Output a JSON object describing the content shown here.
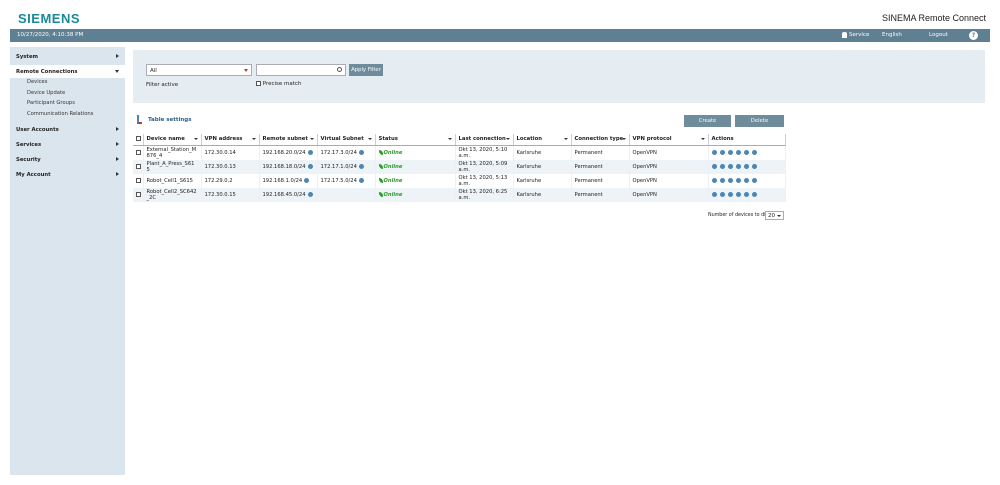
{
  "header": {
    "logo": "SIEMENS",
    "product": "SINEMA Remote Connect"
  },
  "topbar": {
    "datetime": "10/27/2020, 4:10:38 PM",
    "service": "Service",
    "language": "English",
    "logout": "Logout",
    "help": "?"
  },
  "sidebar": {
    "menu": [
      {
        "label": "System"
      },
      {
        "label": "Remote Connections",
        "children": [
          "Devices",
          "Device Update",
          "Participant Groups",
          "Communication Relations"
        ]
      },
      {
        "label": "User Accounts"
      },
      {
        "label": "Services"
      },
      {
        "label": "Security"
      },
      {
        "label": "My Account"
      }
    ]
  },
  "filter": {
    "scope": "All",
    "apply": "Apply Filter",
    "status": "Filter active",
    "precise": "Precise match"
  },
  "table": {
    "settings": "Table settings",
    "create": "Create",
    "delete": "Delete",
    "columns": [
      "Device name",
      "VPN address",
      "Remote subnet",
      "Virtual Subnet",
      "Status",
      "Last connection",
      "Location",
      "Connection type",
      "VPN protocol",
      "Actions"
    ],
    "rows": [
      [
        "External_Station_M876_4",
        "172.30.0.14",
        "192.168.20.0/24",
        "172.17.3.0/24",
        "Online",
        "Okt 13, 2020, 5:10 a.m.",
        "Karlsruhe",
        "Permanent",
        "OpenVPN"
      ],
      [
        "Plant_A_Press_S615",
        "172.30.0.13",
        "192.168.18.0/24",
        "172.17.1.0/24",
        "Online",
        "Okt 13, 2020, 5:09 a.m.",
        "Karlsruhe",
        "Permanent",
        "OpenVPN"
      ],
      [
        "Robot_Cell1_S615",
        "172.29.0.2",
        "192.168.1.0/24",
        "172.17.5.0/24",
        "Online",
        "Okt 13, 2020, 5:13 a.m.",
        "Karlsruhe",
        "Permanent",
        "OpenVPN"
      ],
      [
        "Robot_Cell2_SC642_2C",
        "172.30.0.15",
        "192.168.45.0/24",
        null,
        "Online",
        "Okt 13, 2020, 6:25 a.m.",
        "Karlsruhe",
        "Permanent",
        "OpenVPN"
      ]
    ]
  },
  "pager": {
    "label": "Number of devices to display:",
    "value": 20
  }
}
